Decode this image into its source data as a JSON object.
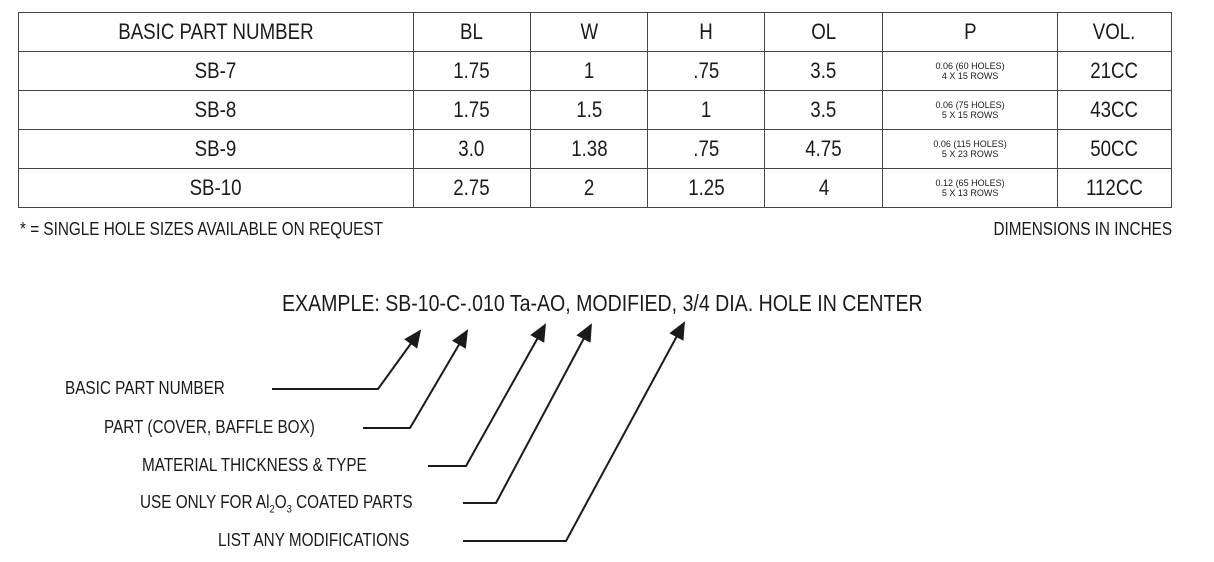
{
  "table": {
    "headers": [
      "BASIC PART NUMBER",
      "BL",
      "W",
      "H",
      "OL",
      "P",
      "VOL."
    ],
    "rows": [
      {
        "part": "SB-7",
        "bl": "1.75",
        "w": "1",
        "h": ".75",
        "ol": "3.5",
        "p1": "0.06 (60 HOLES)",
        "p2": "4 X 15 ROWS",
        "vol": "21CC"
      },
      {
        "part": "SB-8",
        "bl": "1.75",
        "w": "1.5",
        "h": "1",
        "ol": "3.5",
        "p1": "0.06 (75 HOLES)",
        "p2": "5 X 15 ROWS",
        "vol": "43CC"
      },
      {
        "part": "SB-9",
        "bl": "3.0",
        "w": "1.38",
        "h": ".75",
        "ol": "4.75",
        "p1": "0.06 (115 HOLES)",
        "p2": "5 X 23 ROWS",
        "vol": "50CC"
      },
      {
        "part": "SB-10",
        "bl": "2.75",
        "w": "2",
        "h": "1.25",
        "ol": "4",
        "p1": "0.12 (65 HOLES)",
        "p2": "5 X 13 ROWS",
        "vol": "112CC"
      }
    ]
  },
  "footnote": "* = SINGLE HOLE SIZES AVAILABLE ON REQUEST",
  "units_note": "DIMENSIONS IN INCHES",
  "example": "EXAMPLE: SB-10-C-.010 Ta-AO, MODIFIED, 3/4 DIA. HOLE IN CENTER",
  "legend": {
    "basic": "BASIC PART NUMBER",
    "part": "PART (COVER, BAFFLE BOX)",
    "material": "MATERIAL THICKNESS & TYPE",
    "use_prefix": "USE ONLY FOR Al",
    "use_sub1": "2",
    "use_mid": "O",
    "use_sub2": "3",
    "use_suffix": " COATED PARTS",
    "list": "LIST ANY MODIFICATIONS"
  }
}
